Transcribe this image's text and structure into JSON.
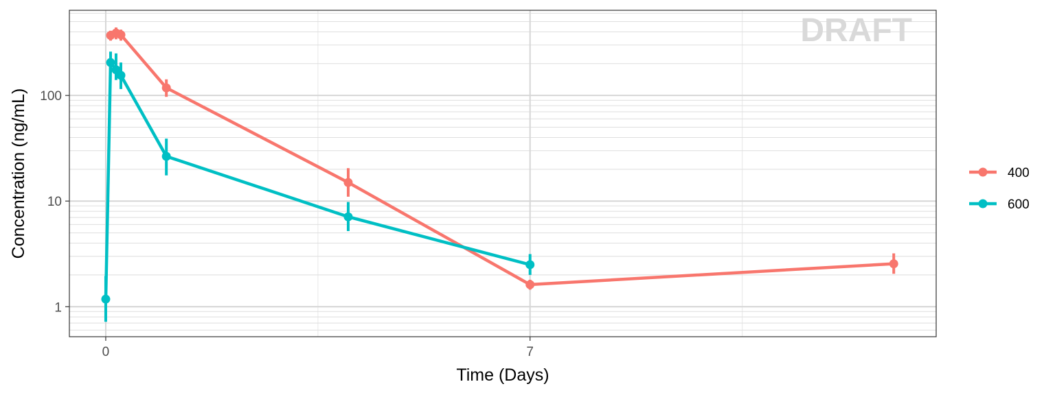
{
  "chart_data": {
    "type": "line",
    "title": "",
    "xlabel": "Time (Days)",
    "ylabel": "Concentration (ng/mL)",
    "watermark": "DRAFT",
    "x_scale": "linear",
    "y_scale": "log10",
    "xlim": [
      -0.6,
      13.7
    ],
    "ylim": [
      0.52,
      640
    ],
    "x_ticks": [
      0,
      7
    ],
    "x_tick_labels": [
      "0",
      "7"
    ],
    "x_minor_ticks": [
      3.5,
      10.5
    ],
    "y_ticks": [
      1,
      10,
      100
    ],
    "y_tick_labels": [
      "1",
      "10",
      "100"
    ],
    "grid": true,
    "legend_position": "right",
    "series": [
      {
        "name": "400",
        "color": "#F8766D",
        "x": [
          0.08,
          0.17,
          0.25,
          1.0,
          4.0,
          7.0,
          13.0
        ],
        "y": [
          370,
          390,
          375,
          118,
          15.0,
          1.62,
          2.55
        ],
        "y_lower": [
          330,
          340,
          330,
          97,
          11.0,
          1.45,
          2.05
        ],
        "y_upper": [
          410,
          440,
          420,
          142,
          20.5,
          1.8,
          3.2
        ]
      },
      {
        "name": "600",
        "color": "#00BFC4",
        "x": [
          0.0,
          0.08,
          0.17,
          0.25,
          1.0,
          4.0,
          7.0
        ],
        "y": [
          1.18,
          205,
          175,
          155,
          26.5,
          7.1,
          2.5
        ],
        "y_lower": [
          0.72,
          165,
          140,
          115,
          17.5,
          5.2,
          2.0
        ],
        "y_upper": [
          1.95,
          260,
          250,
          205,
          39.0,
          9.8,
          3.15
        ]
      }
    ]
  }
}
